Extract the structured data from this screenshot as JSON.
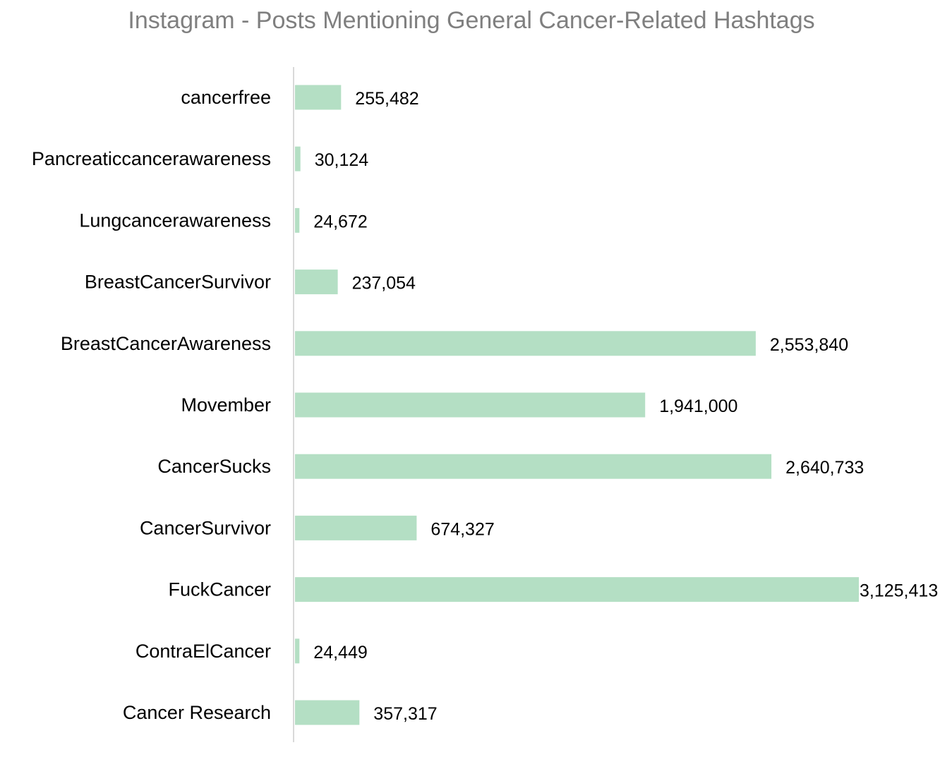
{
  "chart_data": {
    "type": "bar",
    "orientation": "horizontal",
    "title": "Instagram - Posts Mentioning General Cancer-Related Hashtags",
    "categories": [
      "cancerfree",
      "Pancreaticcancerawareness",
      "Lungcancerawareness",
      "BreastCancerSurvivor",
      "BreastCancerAwareness",
      "Movember",
      "CancerSucks",
      "CancerSurvivor",
      "FuckCancer",
      "ContraElCancer",
      "Cancer Research"
    ],
    "values": [
      255482,
      30124,
      24672,
      237054,
      2553840,
      1941000,
      2640733,
      674327,
      3125413,
      24449,
      357317
    ],
    "value_labels": [
      "255,482",
      "30,124",
      "24,672",
      "237,054",
      "2,553,840",
      "1,941,000",
      "2,640,733",
      "674,327",
      "3,125,413",
      "24,449",
      "357,317"
    ],
    "xlim": [
      0,
      3125413
    ],
    "grid": false,
    "legend": "none",
    "colors": {
      "bar": "#b4dfc4",
      "axis": "#d9d9d9",
      "title": "#7f7f7f",
      "text": "#000000"
    }
  }
}
